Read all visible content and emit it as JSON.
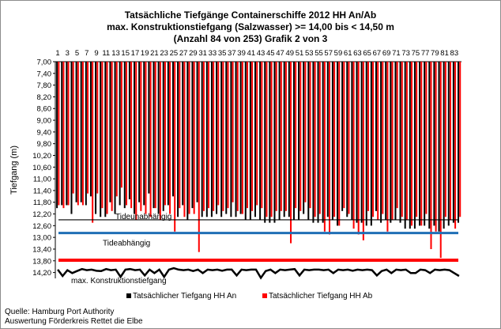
{
  "chart_data": {
    "type": "bar",
    "title_lines": [
      "Tatsächliche Tiefgänge Containerschiffe  2012 HH An/Ab",
      "max. Konstruktionstiefgang  (Salzwasser) >= 14,00 bis < 14,50 m",
      "(Anzahl 84 von 253) Grafik 2 von 3"
    ],
    "ylabel": "Tiefgang (m)",
    "y_ticks": [
      "7,00",
      "7,40",
      "7,80",
      "8,20",
      "8,60",
      "9,00",
      "9,40",
      "9,80",
      "10,20",
      "10,60",
      "11,00",
      "11,40",
      "11,80",
      "12,20",
      "12,60",
      "13,00",
      "13,40",
      "13,80",
      "14,20"
    ],
    "y_tick_values": [
      7.0,
      7.4,
      7.8,
      8.2,
      8.6,
      9.0,
      9.4,
      9.8,
      10.2,
      10.6,
      11.0,
      11.4,
      11.8,
      12.2,
      12.6,
      13.0,
      13.4,
      13.8,
      14.2
    ],
    "ylim": [
      7.0,
      14.4
    ],
    "y_inverted": true,
    "x_tick_labels": [
      "1",
      "3",
      "5",
      "7",
      "9",
      "11",
      "13",
      "15",
      "17",
      "19",
      "21",
      "23",
      "25",
      "27",
      "29",
      "31",
      "33",
      "35",
      "37",
      "39",
      "41",
      "43",
      "45",
      "47",
      "49",
      "51",
      "53",
      "55",
      "57",
      "59",
      "61",
      "63",
      "65",
      "67",
      "69",
      "71",
      "73",
      "75",
      "77",
      "79",
      "81",
      "83"
    ],
    "x_count": 84,
    "series": [
      {
        "name": "Tatsächlicher Tiefgang HH An",
        "color": "#000000",
        "values": [
          12.0,
          11.9,
          11.9,
          12.2,
          11.8,
          11.8,
          11.9,
          11.6,
          12.2,
          12.3,
          12.3,
          11.8,
          12.2,
          11.9,
          12.0,
          11.7,
          12.2,
          11.8,
          11.9,
          11.5,
          12.0,
          12.2,
          12.1,
          11.9,
          11.6,
          12.3,
          11.9,
          12.4,
          12.0,
          11.8,
          12.3,
          12.3,
          12.3,
          12.2,
          12.3,
          12.2,
          12.3,
          12.3,
          12.2,
          12.4,
          12.4,
          12.3,
          12.4,
          12.5,
          12.5,
          12.5,
          12.4,
          12.3,
          12.3,
          12.4,
          12.4,
          12.2,
          12.4,
          12.5,
          12.5,
          12.5,
          12.3,
          12.4,
          12.6,
          12.1,
          12.3,
          12.4,
          12.5,
          12.5,
          12.6,
          12.6,
          12.1,
          12.5,
          12.4,
          12.5,
          12.4,
          12.5,
          12.7,
          12.7,
          12.7,
          12.6,
          12.6,
          12.7,
          12.6,
          12.8,
          12.7,
          12.6,
          12.5,
          12.5
        ]
      },
      {
        "name": "Tatsächlicher Tiefgang HH Ab",
        "color": "#ff0000",
        "values": [
          11.9,
          12.0,
          11.9,
          11.5,
          11.9,
          11.9,
          11.5,
          12.5,
          11.5,
          12.0,
          12.2,
          12.1,
          11.6,
          11.3,
          11.9,
          12.0,
          12.4,
          12.1,
          12.2,
          12.3,
          12.0,
          12.4,
          11.9,
          12.2,
          12.8,
          12.0,
          12.3,
          12.2,
          12.2,
          13.5,
          12.1,
          12.0,
          12.1,
          11.9,
          12.1,
          12.0,
          11.8,
          12.1,
          12.2,
          12.0,
          12.1,
          11.9,
          12.0,
          12.3,
          12.3,
          12.1,
          12.1,
          12.1,
          13.2,
          12.0,
          12.1,
          11.8,
          12.0,
          12.3,
          12.2,
          12.8,
          12.9,
          12.3,
          12.6,
          12.0,
          12.2,
          12.7,
          12.9,
          13.1,
          12.1,
          12.3,
          12.4,
          12.2,
          12.8,
          12.4,
          12.0,
          12.3,
          12.4,
          12.6,
          12.3,
          12.6,
          12.2,
          13.4,
          12.8,
          13.7,
          12.3,
          12.4,
          12.7,
          12.3
        ]
      }
    ],
    "reference_lines": [
      {
        "label": "Tideunabhängig",
        "value": 12.4,
        "color": "#000000",
        "width": 1.2
      },
      {
        "label": "Tideabhängig",
        "value": 12.85,
        "color": "#1f6fb5",
        "width": 3
      },
      {
        "label": "",
        "value": 13.78,
        "color": "#ff0000",
        "width": 4
      },
      {
        "label": "max. Konstruktionstiefgang",
        "value": 14.15,
        "color": "#000000",
        "width": 2.5
      }
    ],
    "max_construction_profile": [
      14.1,
      14.32,
      14.12,
      14.22,
      14.15,
      14.08,
      14.12,
      14.1,
      14.14,
      14.15,
      14.08,
      14.12,
      14.1,
      14.35,
      14.1,
      14.08,
      14.12,
      14.1,
      14.3,
      14.1,
      14.22,
      14.1,
      14.35,
      14.1,
      14.05,
      14.1,
      14.12,
      14.1,
      14.15,
      14.1,
      14.22,
      14.1,
      14.12,
      14.1,
      14.14,
      14.1,
      14.1,
      14.3,
      14.1,
      14.12,
      14.1,
      14.1,
      14.38,
      14.15,
      14.1,
      14.22,
      14.1,
      14.12,
      14.1,
      14.08,
      14.3,
      14.1,
      14.12,
      14.1,
      14.1,
      14.12,
      14.1,
      14.22,
      14.1,
      14.12,
      14.1,
      14.14,
      14.1,
      14.12,
      14.1,
      14.12,
      14.3,
      14.15,
      14.1,
      14.22,
      14.1,
      14.12,
      14.1,
      14.22,
      14.22,
      14.1,
      14.12,
      14.22,
      14.1,
      14.12,
      14.1,
      14.12,
      14.22,
      14.32
    ],
    "grid": false,
    "legend": {
      "position": "bottom-center"
    }
  },
  "source_lines": [
    "Quelle: Hamburg Port Authority",
    "Auswertung Förderkreis Rettet die Elbe"
  ]
}
